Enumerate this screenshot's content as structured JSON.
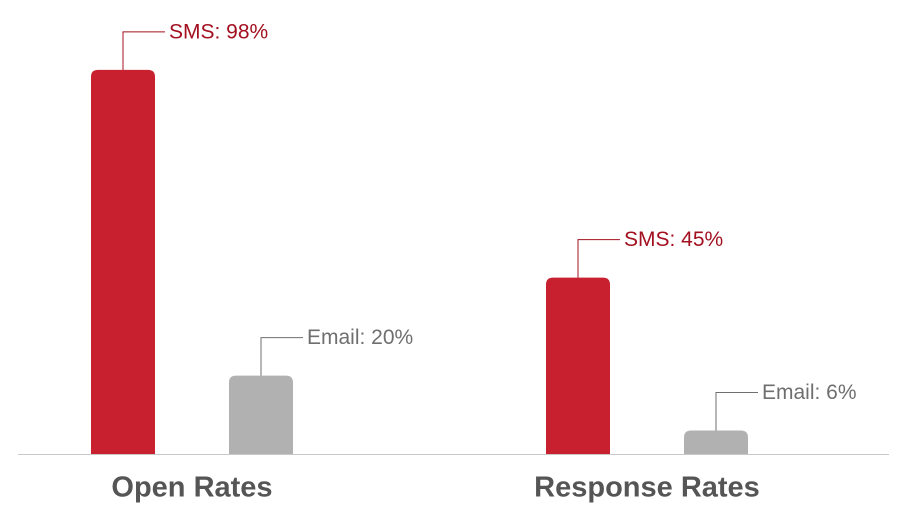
{
  "chart_data": {
    "type": "bar",
    "categories": [
      "Open Rates",
      "Response Rates"
    ],
    "series": [
      {
        "color": "#c8202f",
        "label_color": "#a3101f",
        "values": [
          98,
          45
        ],
        "value_labels": [
          "SMS: 98%",
          "SMS: 45%"
        ]
      },
      {
        "color": "#b1b1b1",
        "label_color": "#6f6f6f",
        "values": [
          20,
          6
        ],
        "value_labels": [
          "Email: 20%",
          "Email: 6%"
        ]
      }
    ]
  }
}
